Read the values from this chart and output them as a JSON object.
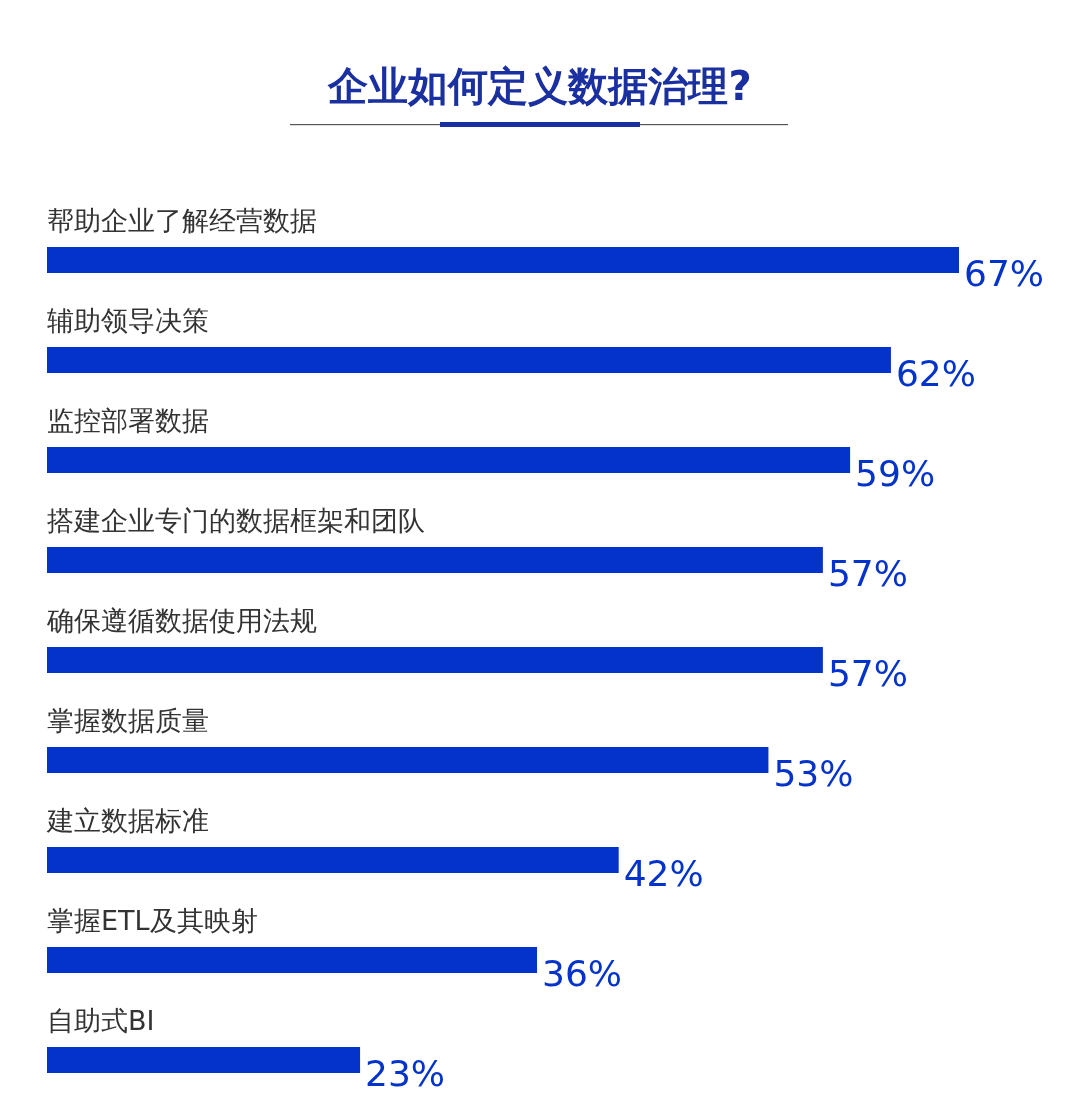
{
  "chart_data": {
    "type": "bar",
    "orientation": "horizontal",
    "title": "企业如何定义数据治理?",
    "categories": [
      "帮助企业了解经营数据",
      "辅助领导决策",
      "监控部署数据",
      "搭建企业专门的数据框架和团队",
      "确保遵循数据使用法规",
      "掌握数据质量",
      "建立数据标准",
      "掌握ETL及其映射",
      "自助式BI"
    ],
    "values": [
      67,
      62,
      59,
      57,
      57,
      53,
      42,
      36,
      23
    ],
    "value_labels": [
      "67%",
      "62%",
      "59%",
      "57%",
      "57%",
      "53%",
      "42%",
      "36%",
      "23%"
    ],
    "color": "#0433cc"
  }
}
